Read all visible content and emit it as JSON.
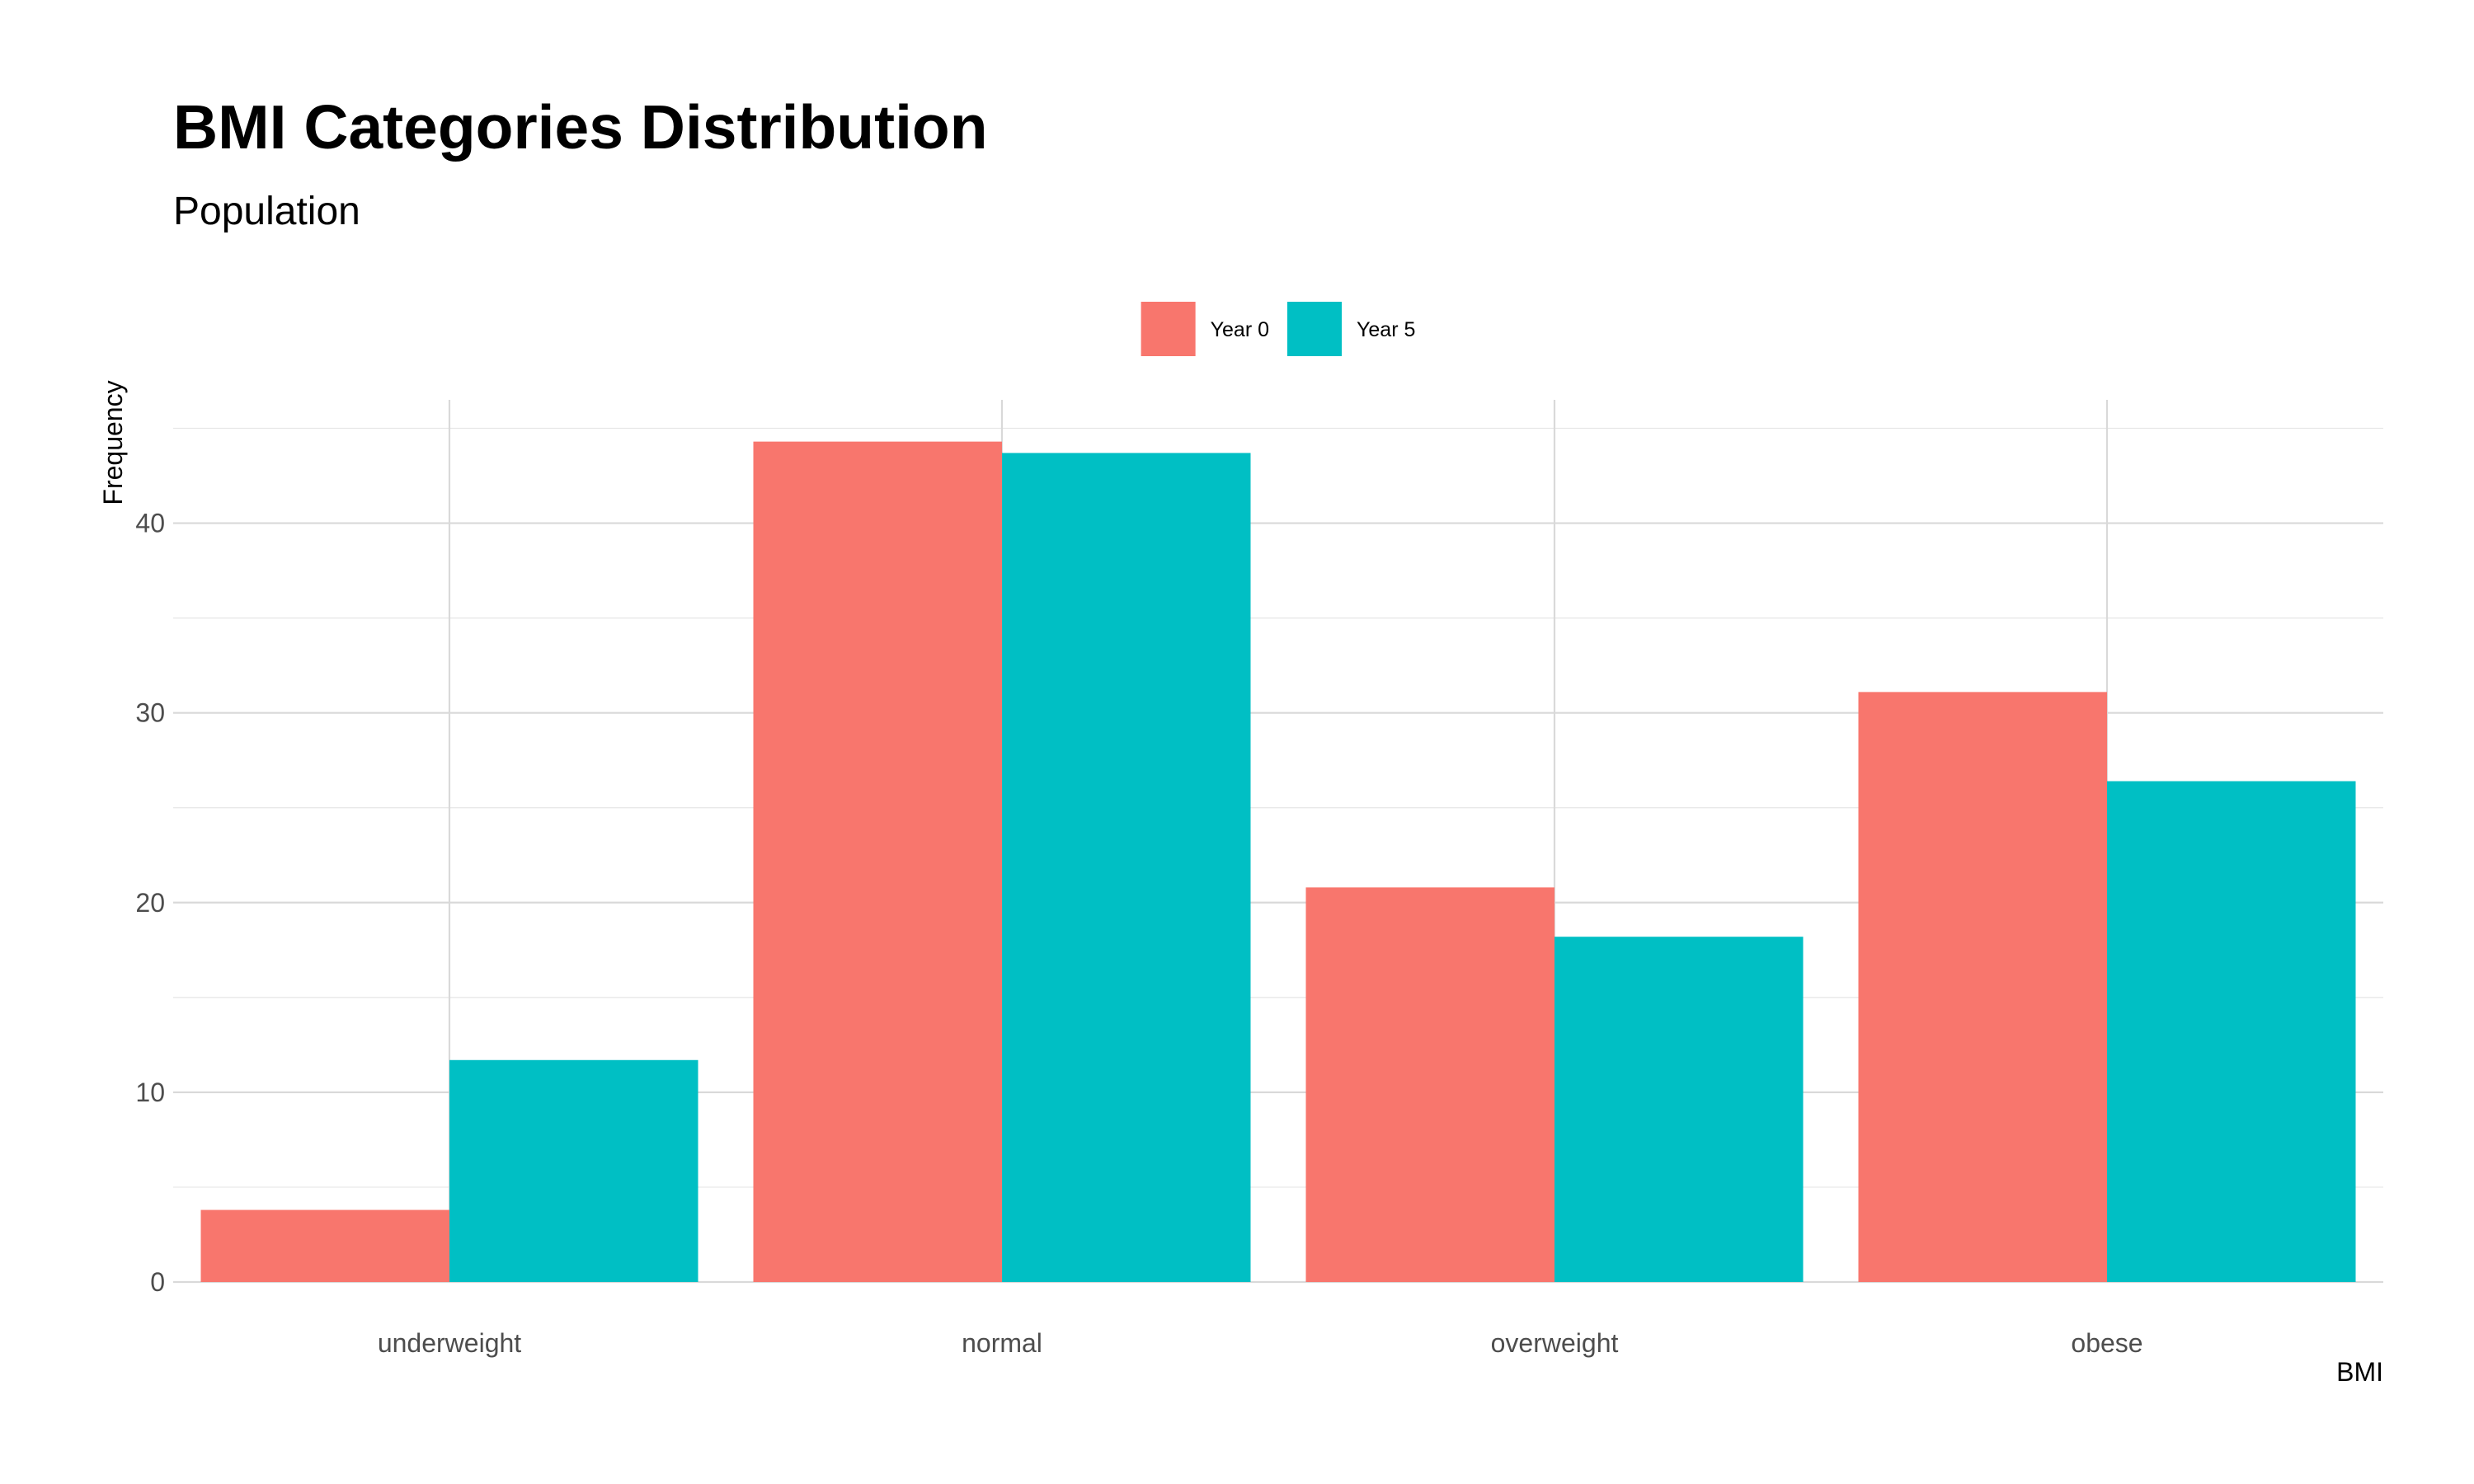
{
  "chart_data": {
    "type": "bar",
    "title": "BMI Categories Distribution",
    "subtitle": "Population",
    "xlabel": "BMI",
    "ylabel": "Frequency",
    "categories": [
      "underweight",
      "normal",
      "overweight",
      "obese"
    ],
    "series": [
      {
        "name": "Year 0",
        "color": "#F8766D",
        "values": [
          3.8,
          44.3,
          20.8,
          31.1
        ]
      },
      {
        "name": "Year 5",
        "color": "#00BFC4",
        "values": [
          11.7,
          43.7,
          18.2,
          26.4
        ]
      }
    ],
    "ylim": [
      0,
      46.5
    ],
    "yticks": [
      0,
      10,
      20,
      30,
      40
    ],
    "grid": true,
    "legend_position": "top"
  }
}
